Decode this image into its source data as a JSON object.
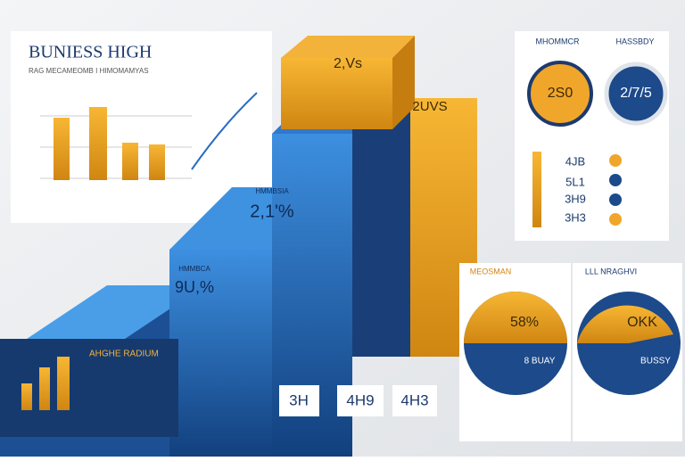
{
  "header": {
    "title": "BUNIESS HIGH",
    "subtitle": "RAG MECAMEOMB I HIMOMAMYAS"
  },
  "steps": [
    {
      "label": "2,Vs"
    },
    {
      "label": "2UVS"
    },
    {
      "label": "HMMBSIA",
      "value": "2,1'%"
    },
    {
      "label": "HMMBCA",
      "value": "9U,%"
    }
  ],
  "bottom_left": {
    "title": "AHGHE RADIUM"
  },
  "bottom_labels": [
    "3H",
    "4H9",
    "4H3"
  ],
  "right_top": {
    "titles": [
      "MHOMMCR",
      "HASSBDY"
    ],
    "pies": [
      "2S0",
      "2/7/5"
    ],
    "rows": [
      "4JB",
      "5L1",
      "3H9",
      "3H3"
    ]
  },
  "lower_panels": [
    {
      "title": "MEOSMAN",
      "value": "58%",
      "caption": "8 BUAY"
    },
    {
      "title": "LLL NRAGHVI",
      "value": "OKK",
      "caption": "BUSSY"
    }
  ]
}
